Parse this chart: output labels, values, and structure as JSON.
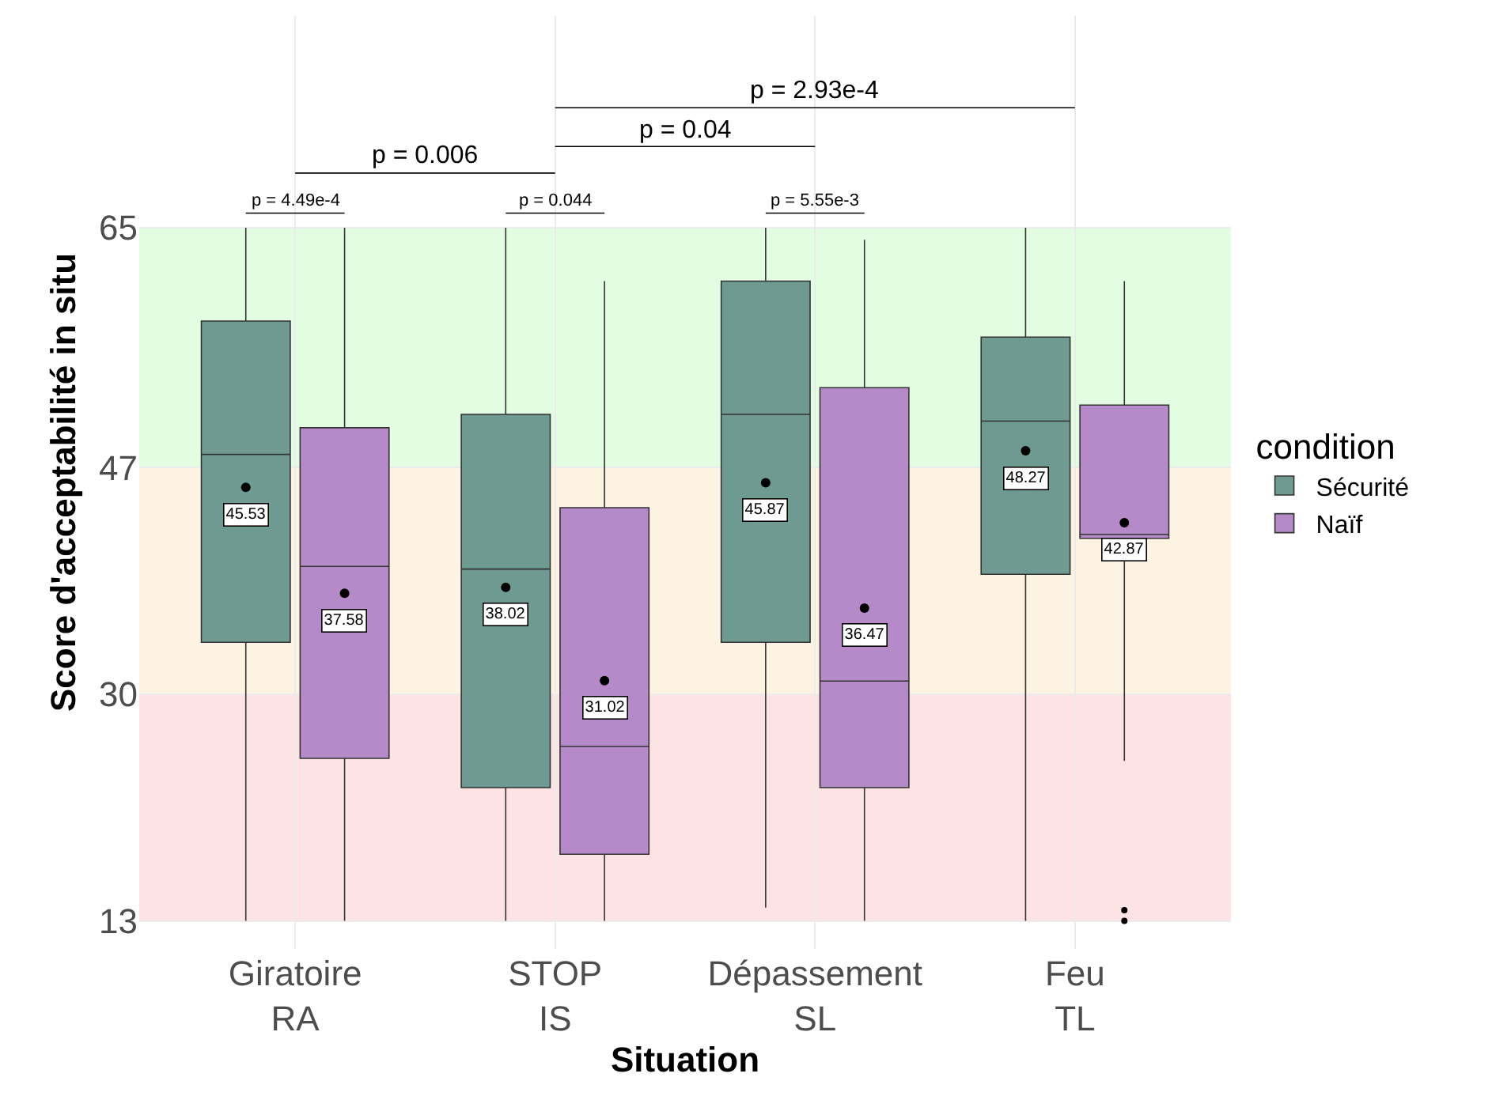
{
  "chart_data": {
    "type": "box",
    "xlabel": "Situation",
    "ylabel": "Score d'acceptabilité in situ",
    "legend_title": "condition",
    "categories": [
      "Giratoire\nRA",
      "STOP\nIS",
      "Dépassement\nSL",
      "Feu\nTL"
    ],
    "series": [
      {
        "name": "Sécurité",
        "color": "#6f9a92",
        "value_labels": [
          "45.53",
          "38.02",
          "45.87",
          "48.27"
        ],
        "boxes": [
          {
            "low": 13,
            "q1": 33.9,
            "median": 48.0,
            "q3": 58.0,
            "high": 65,
            "mean": 45.53
          },
          {
            "low": 13,
            "q1": 23.0,
            "median": 39.4,
            "q3": 51.0,
            "high": 65,
            "mean": 38.02
          },
          {
            "low": 14.0,
            "q1": 33.9,
            "median": 51.0,
            "q3": 61.0,
            "high": 65,
            "mean": 45.87
          },
          {
            "low": 13,
            "q1": 39.0,
            "median": 50.5,
            "q3": 56.8,
            "high": 65,
            "mean": 48.27
          }
        ]
      },
      {
        "name": "Naïf",
        "color": "#b68ac9",
        "value_labels": [
          "37.58",
          "31.02",
          "36.47",
          "42.87"
        ],
        "boxes": [
          {
            "low": 13,
            "q1": 25.2,
            "median": 39.6,
            "q3": 50.0,
            "high": 65,
            "mean": 37.58
          },
          {
            "low": 13,
            "q1": 18.0,
            "median": 26.1,
            "q3": 44.0,
            "high": 61.0,
            "mean": 31.02
          },
          {
            "low": 13,
            "q1": 23.0,
            "median": 31.0,
            "q3": 53.0,
            "high": 64.1,
            "mean": 36.47
          },
          {
            "low": 25.0,
            "q1": 41.7,
            "median": 42.0,
            "q3": 51.7,
            "high": 61.0,
            "mean": 42.87,
            "outliers": [
              13.8,
              13.0
            ]
          }
        ]
      }
    ],
    "ylim": [
      10.9,
      80.9
    ],
    "yticks": [
      13,
      30,
      47,
      65
    ],
    "grid": true,
    "legend": "right",
    "bands": [
      {
        "axis": "y",
        "from": 13,
        "to": 30,
        "color": "#fde3e3"
      },
      {
        "axis": "y",
        "from": 30,
        "to": 47,
        "color": "#fdf3e3"
      },
      {
        "axis": "y",
        "from": 47,
        "to": 65,
        "color": "#e3fde3"
      }
    ],
    "annotations": [
      "p = 4.49e-4",
      "p = 0.044",
      "p = 5.55e-3",
      "p = 0.006",
      "p = 0.04",
      "p = 2.93e-4"
    ]
  }
}
